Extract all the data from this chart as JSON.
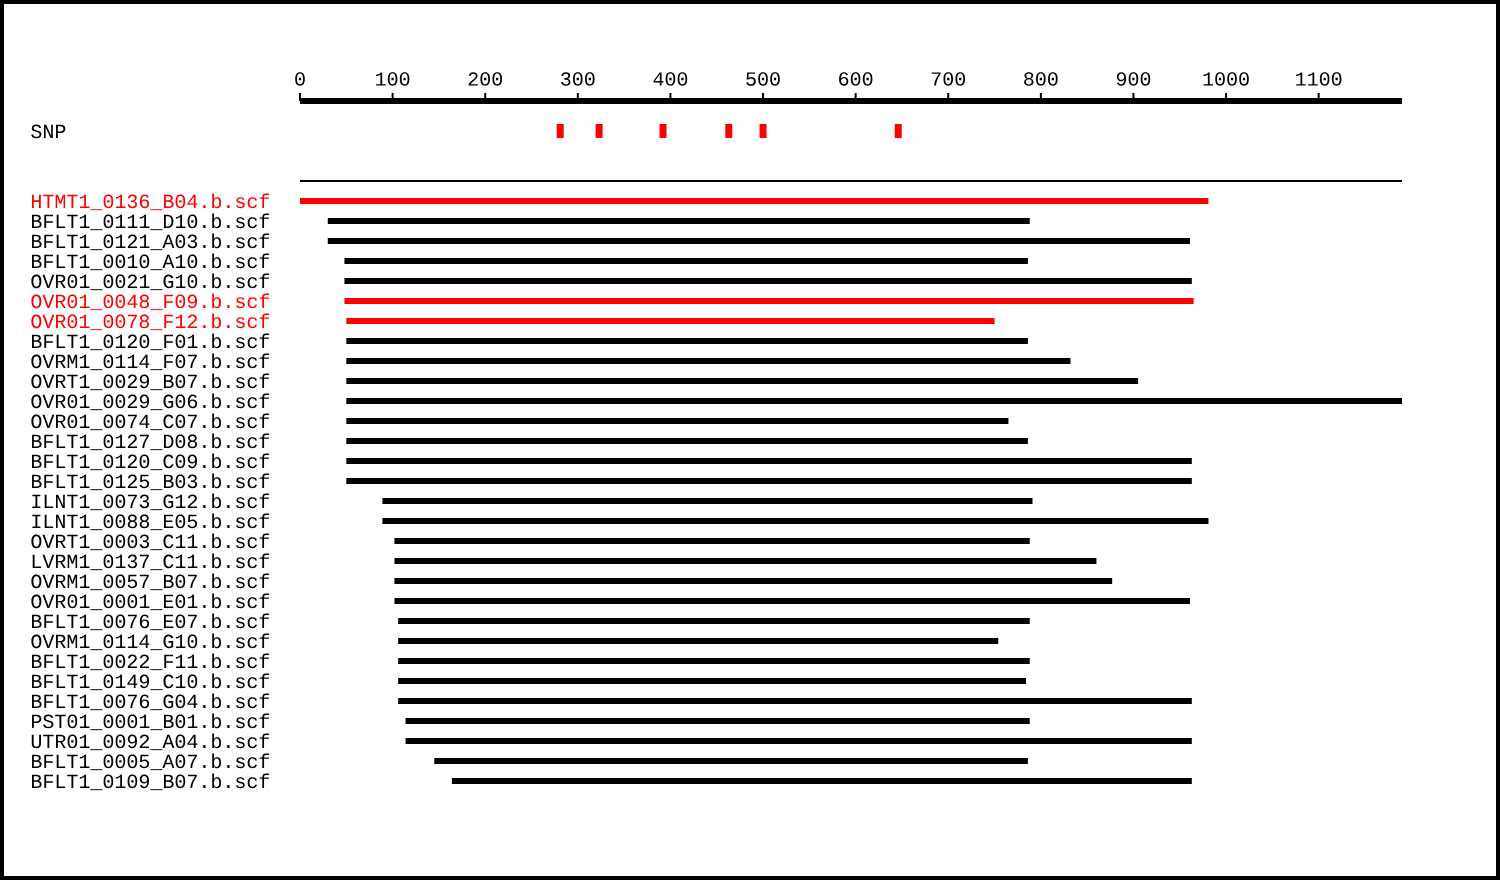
{
  "chart_data": {
    "type": "bar",
    "orientation": "horizontal",
    "categories": [
      "SNP",
      null,
      "HTMT1_0136_B04.b.scf",
      "BFLT1_0111_D10.b.scf",
      "BFLT1_0121_A03.b.scf",
      "BFLT1_0010_A10.b.scf",
      "OVR01_0021_G10.b.scf",
      "OVR01_0048_F09.b.scf",
      "OVR01_0078_F12.b.scf",
      "BFLT1_0120_F01.b.scf",
      "OVRM1_0114_F07.b.scf",
      "OVRT1_0029_B07.b.scf",
      "OVR01_0029_G06.b.scf",
      "OVR01_0074_C07.b.scf",
      "BFLT1_0127_D08.b.scf",
      "BFLT1_0120_C09.b.scf",
      "BFLT1_0125_B03.b.scf",
      "ILNT1_0073_G12.b.scf",
      "ILNT1_0088_E05.b.scf",
      "OVRT1_0003_C11.b.scf",
      "LVRM1_0137_C11.b.scf",
      "OVRM1_0057_B07.b.scf",
      "OVR01_0001_E01.b.scf",
      "BFLT1_0076_E07.b.scf",
      "OVRM1_0114_G10.b.scf",
      "BFLT1_0022_F11.b.scf",
      "BFLT1_0149_C10.b.scf",
      "BFLT1_0076_G04.b.scf",
      "PST01_0001_B01.b.scf",
      "UTR01_0092_A04.b.scf",
      "BFLT1_0005_A07.b.scf",
      "BFLT1_0109_B07.b.scf"
    ],
    "xlim": [
      0,
      1190
    ],
    "xticks": [
      0,
      100,
      200,
      300,
      400,
      500,
      600,
      700,
      800,
      900,
      1000,
      1100
    ],
    "series": [
      {
        "base": [
          null,
          0,
          0,
          30,
          30,
          48,
          48,
          48,
          50,
          50,
          50,
          50,
          50,
          50,
          50,
          50,
          50,
          89,
          89,
          102,
          102,
          102,
          102,
          106,
          106,
          106,
          106,
          106,
          114,
          114,
          145,
          164
        ],
        "values": [
          null,
          1190,
          981,
          758,
          931,
          738,
          915,
          917,
          700,
          736,
          782,
          855,
          1140,
          715,
          736,
          913,
          913,
          702,
          892,
          686,
          758,
          775,
          859,
          682,
          648,
          682,
          678,
          857,
          674,
          849,
          641,
          799
        ],
        "colors": [
          null,
          "#000000",
          "#ff0000",
          "#000000",
          "#000000",
          "#000000",
          "#000000",
          "#ff0000",
          "#ff0000",
          "#000000",
          "#000000",
          "#000000",
          "#000000",
          "#000000",
          "#000000",
          "#000000",
          "#000000",
          "#000000",
          "#000000",
          "#000000",
          "#000000",
          "#000000",
          "#000000",
          "#000000",
          "#000000",
          "#000000",
          "#000000",
          "#000000",
          "#000000",
          "#000000",
          "#000000",
          "#000000"
        ]
      },
      {
        "type": "scatter",
        "color": "#ff0000",
        "x": [
          "SNP",
          "SNP",
          "SNP",
          "SNP",
          "SNP",
          "SNP"
        ],
        "values": [
          281,
          323,
          392,
          463,
          500,
          646
        ]
      }
    ]
  }
}
